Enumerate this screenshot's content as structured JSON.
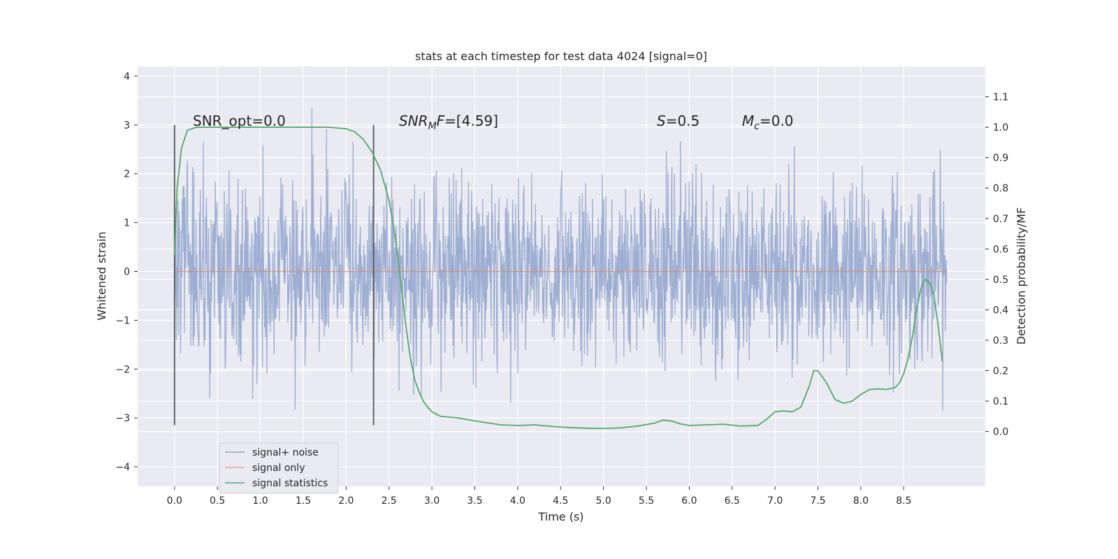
{
  "chart_data": {
    "type": "line",
    "title": "stats at each timestep for test data 4024 [signal=0]",
    "xlabel": "Time (s)",
    "ylabel": "Whitened strain",
    "y2label": "Detection probability/MF",
    "xlim": [
      -0.43,
      9.45
    ],
    "ylim": [
      -4.4,
      4.2
    ],
    "y2lim": [
      -0.18,
      1.2
    ],
    "x_ticks": [
      0.0,
      0.5,
      1.0,
      1.5,
      2.0,
      2.5,
      3.0,
      3.5,
      4.0,
      4.5,
      5.0,
      5.5,
      6.0,
      6.5,
      7.0,
      7.5,
      8.0,
      8.5
    ],
    "y_ticks": [
      -4,
      -3,
      -2,
      -1,
      0,
      1,
      2,
      3,
      4
    ],
    "y2_ticks": [
      0.0,
      0.1,
      0.2,
      0.3,
      0.4,
      0.5,
      0.6,
      0.7,
      0.8,
      0.9,
      1.0,
      1.1
    ],
    "grid": true,
    "legend_position": "lower-left",
    "annotations": {
      "snr_opt": "SNR_opt=0.0",
      "snr_mf_sub": "M",
      "snr_mf_val": "=[4.59]",
      "s": "=0.5",
      "mc": "=0.0"
    },
    "vlines": [
      0.0,
      2.32
    ],
    "series": [
      {
        "name": "signal+ noise",
        "color": "#8fa3cd",
        "noise": {
          "x_start": 0.0,
          "x_end": 9.0,
          "std": 0.95,
          "min": -3.75,
          "max": 3.85
        }
      },
      {
        "name": "signal only",
        "color": "#dd8452",
        "x": [
          0.0,
          9.0
        ],
        "y": [
          0.0,
          0.0
        ]
      },
      {
        "name": "signal statistics",
        "color": "#55a868",
        "x": [
          0.0,
          0.03,
          0.08,
          0.15,
          0.25,
          0.4,
          0.7,
          1.0,
          1.5,
          1.8,
          2.0,
          2.1,
          2.2,
          2.3,
          2.4,
          2.5,
          2.55,
          2.6,
          2.65,
          2.7,
          2.75,
          2.8,
          2.85,
          2.9,
          2.95,
          3.0,
          3.1,
          3.3,
          3.5,
          3.8,
          4.0,
          4.2,
          4.4,
          4.6,
          4.8,
          5.0,
          5.2,
          5.4,
          5.6,
          5.7,
          5.8,
          5.9,
          6.0,
          6.2,
          6.4,
          6.6,
          6.8,
          6.9,
          7.0,
          7.1,
          7.2,
          7.3,
          7.4,
          7.45,
          7.5,
          7.6,
          7.7,
          7.8,
          7.9,
          8.0,
          8.1,
          8.2,
          8.3,
          8.4,
          8.45,
          8.5,
          8.55,
          8.6,
          8.65,
          8.7,
          8.75,
          8.8,
          8.85,
          8.9,
          8.95
        ],
        "y": [
          0.58,
          0.8,
          0.93,
          0.99,
          1.0,
          1.0,
          1.0,
          1.0,
          1.0,
          1.0,
          0.995,
          0.985,
          0.96,
          0.92,
          0.86,
          0.76,
          0.68,
          0.58,
          0.46,
          0.34,
          0.24,
          0.17,
          0.13,
          0.1,
          0.08,
          0.065,
          0.05,
          0.045,
          0.035,
          0.022,
          0.02,
          0.022,
          0.017,
          0.013,
          0.011,
          0.01,
          0.012,
          0.018,
          0.028,
          0.038,
          0.034,
          0.025,
          0.02,
          0.022,
          0.024,
          0.018,
          0.02,
          0.04,
          0.065,
          0.068,
          0.065,
          0.08,
          0.15,
          0.2,
          0.2,
          0.16,
          0.105,
          0.093,
          0.1,
          0.122,
          0.138,
          0.14,
          0.138,
          0.145,
          0.16,
          0.19,
          0.24,
          0.31,
          0.4,
          0.47,
          0.5,
          0.49,
          0.45,
          0.35,
          0.23
        ]
      }
    ]
  }
}
